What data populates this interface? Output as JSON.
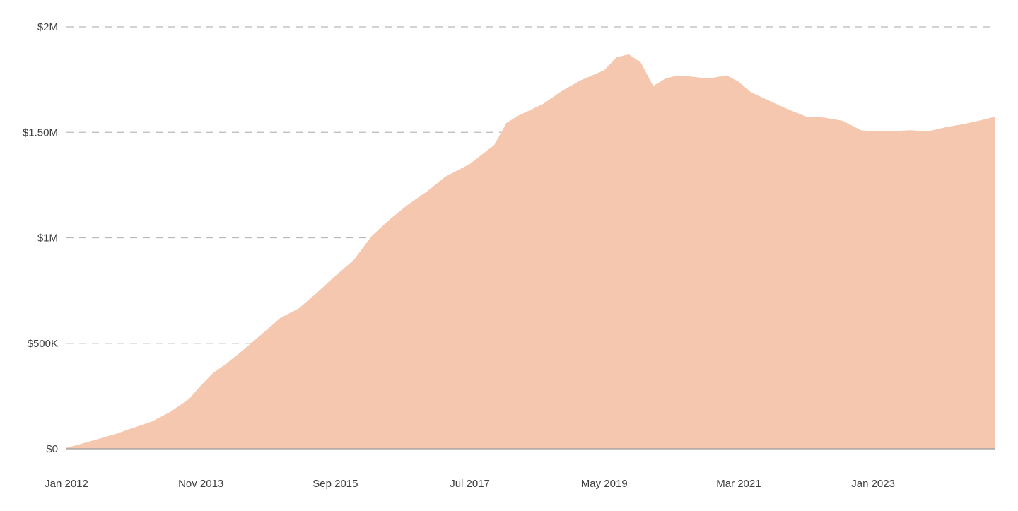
{
  "chart_data": {
    "type": "area",
    "title": "",
    "xlabel": "",
    "ylabel": "",
    "x_range": [
      "2012-01",
      "2024-09"
    ],
    "ylim": [
      0,
      2000000
    ],
    "grid": true,
    "legend": "none",
    "fill_color": "#f5c7ae",
    "grid_color": "#b9b9b9",
    "y_ticks": [
      {
        "value": 0,
        "label": "$0"
      },
      {
        "value": 500000,
        "label": "$500K"
      },
      {
        "value": 1000000,
        "label": "$1M"
      },
      {
        "value": 1500000,
        "label": "$1.50M"
      },
      {
        "value": 2000000,
        "label": "$2M"
      }
    ],
    "x_ticks": [
      {
        "date": "2012-01",
        "label": "Jan 2012"
      },
      {
        "date": "2013-11",
        "label": "Nov 2013"
      },
      {
        "date": "2015-09",
        "label": "Sep 2015"
      },
      {
        "date": "2017-07",
        "label": "Jul 2017"
      },
      {
        "date": "2019-05",
        "label": "May 2019"
      },
      {
        "date": "2021-03",
        "label": "Mar 2021"
      },
      {
        "date": "2023-01",
        "label": "Jan 2023"
      }
    ],
    "series": [
      {
        "x": [
          "2012-01",
          "2012-03",
          "2012-06",
          "2012-09",
          "2012-12",
          "2013-03",
          "2013-06",
          "2013-09",
          "2013-11",
          "2014-01",
          "2014-03",
          "2014-06",
          "2014-09",
          "2014-12",
          "2015-03",
          "2015-06",
          "2015-09",
          "2015-12",
          "2016-03",
          "2016-06",
          "2016-09",
          "2016-12",
          "2017-03",
          "2017-07",
          "2017-11",
          "2018-01",
          "2018-03",
          "2018-07",
          "2018-10",
          "2019-01",
          "2019-05",
          "2019-07",
          "2019-09",
          "2019-11",
          "2020-01",
          "2020-03",
          "2020-05",
          "2020-07",
          "2020-10",
          "2021-01",
          "2021-03",
          "2021-05",
          "2021-08",
          "2021-11",
          "2022-02",
          "2022-05",
          "2022-08",
          "2022-11",
          "2023-01",
          "2023-04",
          "2023-07",
          "2023-10",
          "2024-01",
          "2024-04",
          "2024-07",
          "2024-09"
        ],
        "values": [
          5000,
          20000,
          45000,
          70000,
          100000,
          130000,
          175000,
          235000,
          300000,
          360000,
          400000,
          470000,
          545000,
          620000,
          665000,
          740000,
          820000,
          895000,
          1010000,
          1090000,
          1160000,
          1220000,
          1290000,
          1350000,
          1440000,
          1545000,
          1580000,
          1635000,
          1695000,
          1745000,
          1795000,
          1855000,
          1870000,
          1830000,
          1720000,
          1755000,
          1770000,
          1765000,
          1755000,
          1770000,
          1740000,
          1690000,
          1650000,
          1610000,
          1575000,
          1570000,
          1555000,
          1510000,
          1505000,
          1505000,
          1510000,
          1505000,
          1525000,
          1540000,
          1560000,
          1575000
        ]
      }
    ]
  }
}
